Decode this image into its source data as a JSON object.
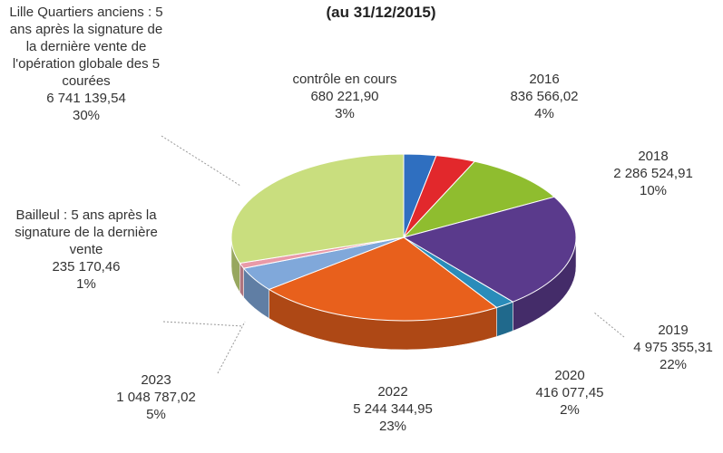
{
  "chart_data": {
    "type": "pie3d",
    "title": "(au 31/12/2015)",
    "categories": [
      "contrôle en cours",
      "2016",
      "2018",
      "2019",
      "2020",
      "2022",
      "2023",
      "Bailleul : 5 ans après la signature de la dernière vente",
      "Lille Quartiers anciens : 5 ans après la signature de la dernière vente de l'opération globale des 5 courées"
    ],
    "values": [
      680221.9,
      836566.02,
      2286524.91,
      4975355.31,
      416077.45,
      5244344.95,
      1048787.02,
      235170.46,
      6741139.54
    ],
    "value_labels": [
      "680 221,90",
      "836 566,02",
      "2 286 524,91",
      "4 975 355,31",
      "416 077,45",
      "5 244 344,95",
      "1 048 787,02",
      "235 170,46",
      "6 741 139,54"
    ],
    "percents": [
      3,
      4,
      10,
      22,
      2,
      23,
      5,
      1,
      30
    ],
    "percent_labels": [
      "3%",
      "4%",
      "10%",
      "22%",
      "2%",
      "23%",
      "5%",
      "1%",
      "30%"
    ],
    "colors": [
      "#2f6fc0",
      "#e2282c",
      "#8fbd2f",
      "#5a3a8c",
      "#2a8cba",
      "#e8601c",
      "#80a8da",
      "#e99aa8",
      "#c9de7e"
    ]
  }
}
